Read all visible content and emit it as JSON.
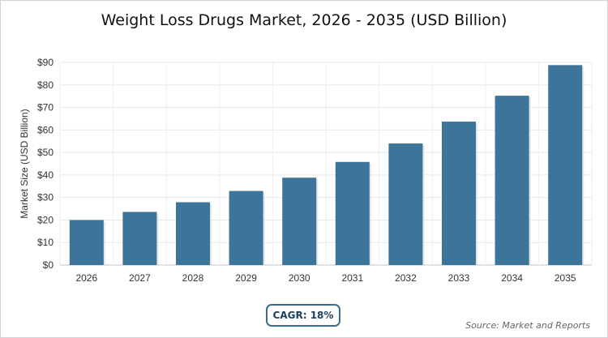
{
  "chart_data": {
    "type": "bar",
    "title": "Weight Loss Drugs Market, 2026 - 2035 (USD Billion)",
    "ylabel": "Market Size (USD Billion)",
    "categories": [
      "2026",
      "2027",
      "2028",
      "2029",
      "2030",
      "2031",
      "2032",
      "2033",
      "2034",
      "2035"
    ],
    "values": [
      20,
      23.6,
      27.9,
      32.9,
      38.8,
      45.8,
      54.0,
      63.7,
      75.2,
      88.8
    ],
    "ylim": [
      0,
      90
    ],
    "yticks": [
      "$0",
      "$10",
      "$20",
      "$30",
      "$40",
      "$50",
      "$60",
      "$70",
      "$80",
      "$90"
    ],
    "grid": true,
    "bar_color": "#3d7499"
  },
  "badge": {
    "cagr": "CAGR: 18%"
  },
  "source": "Source: Market and Reports"
}
